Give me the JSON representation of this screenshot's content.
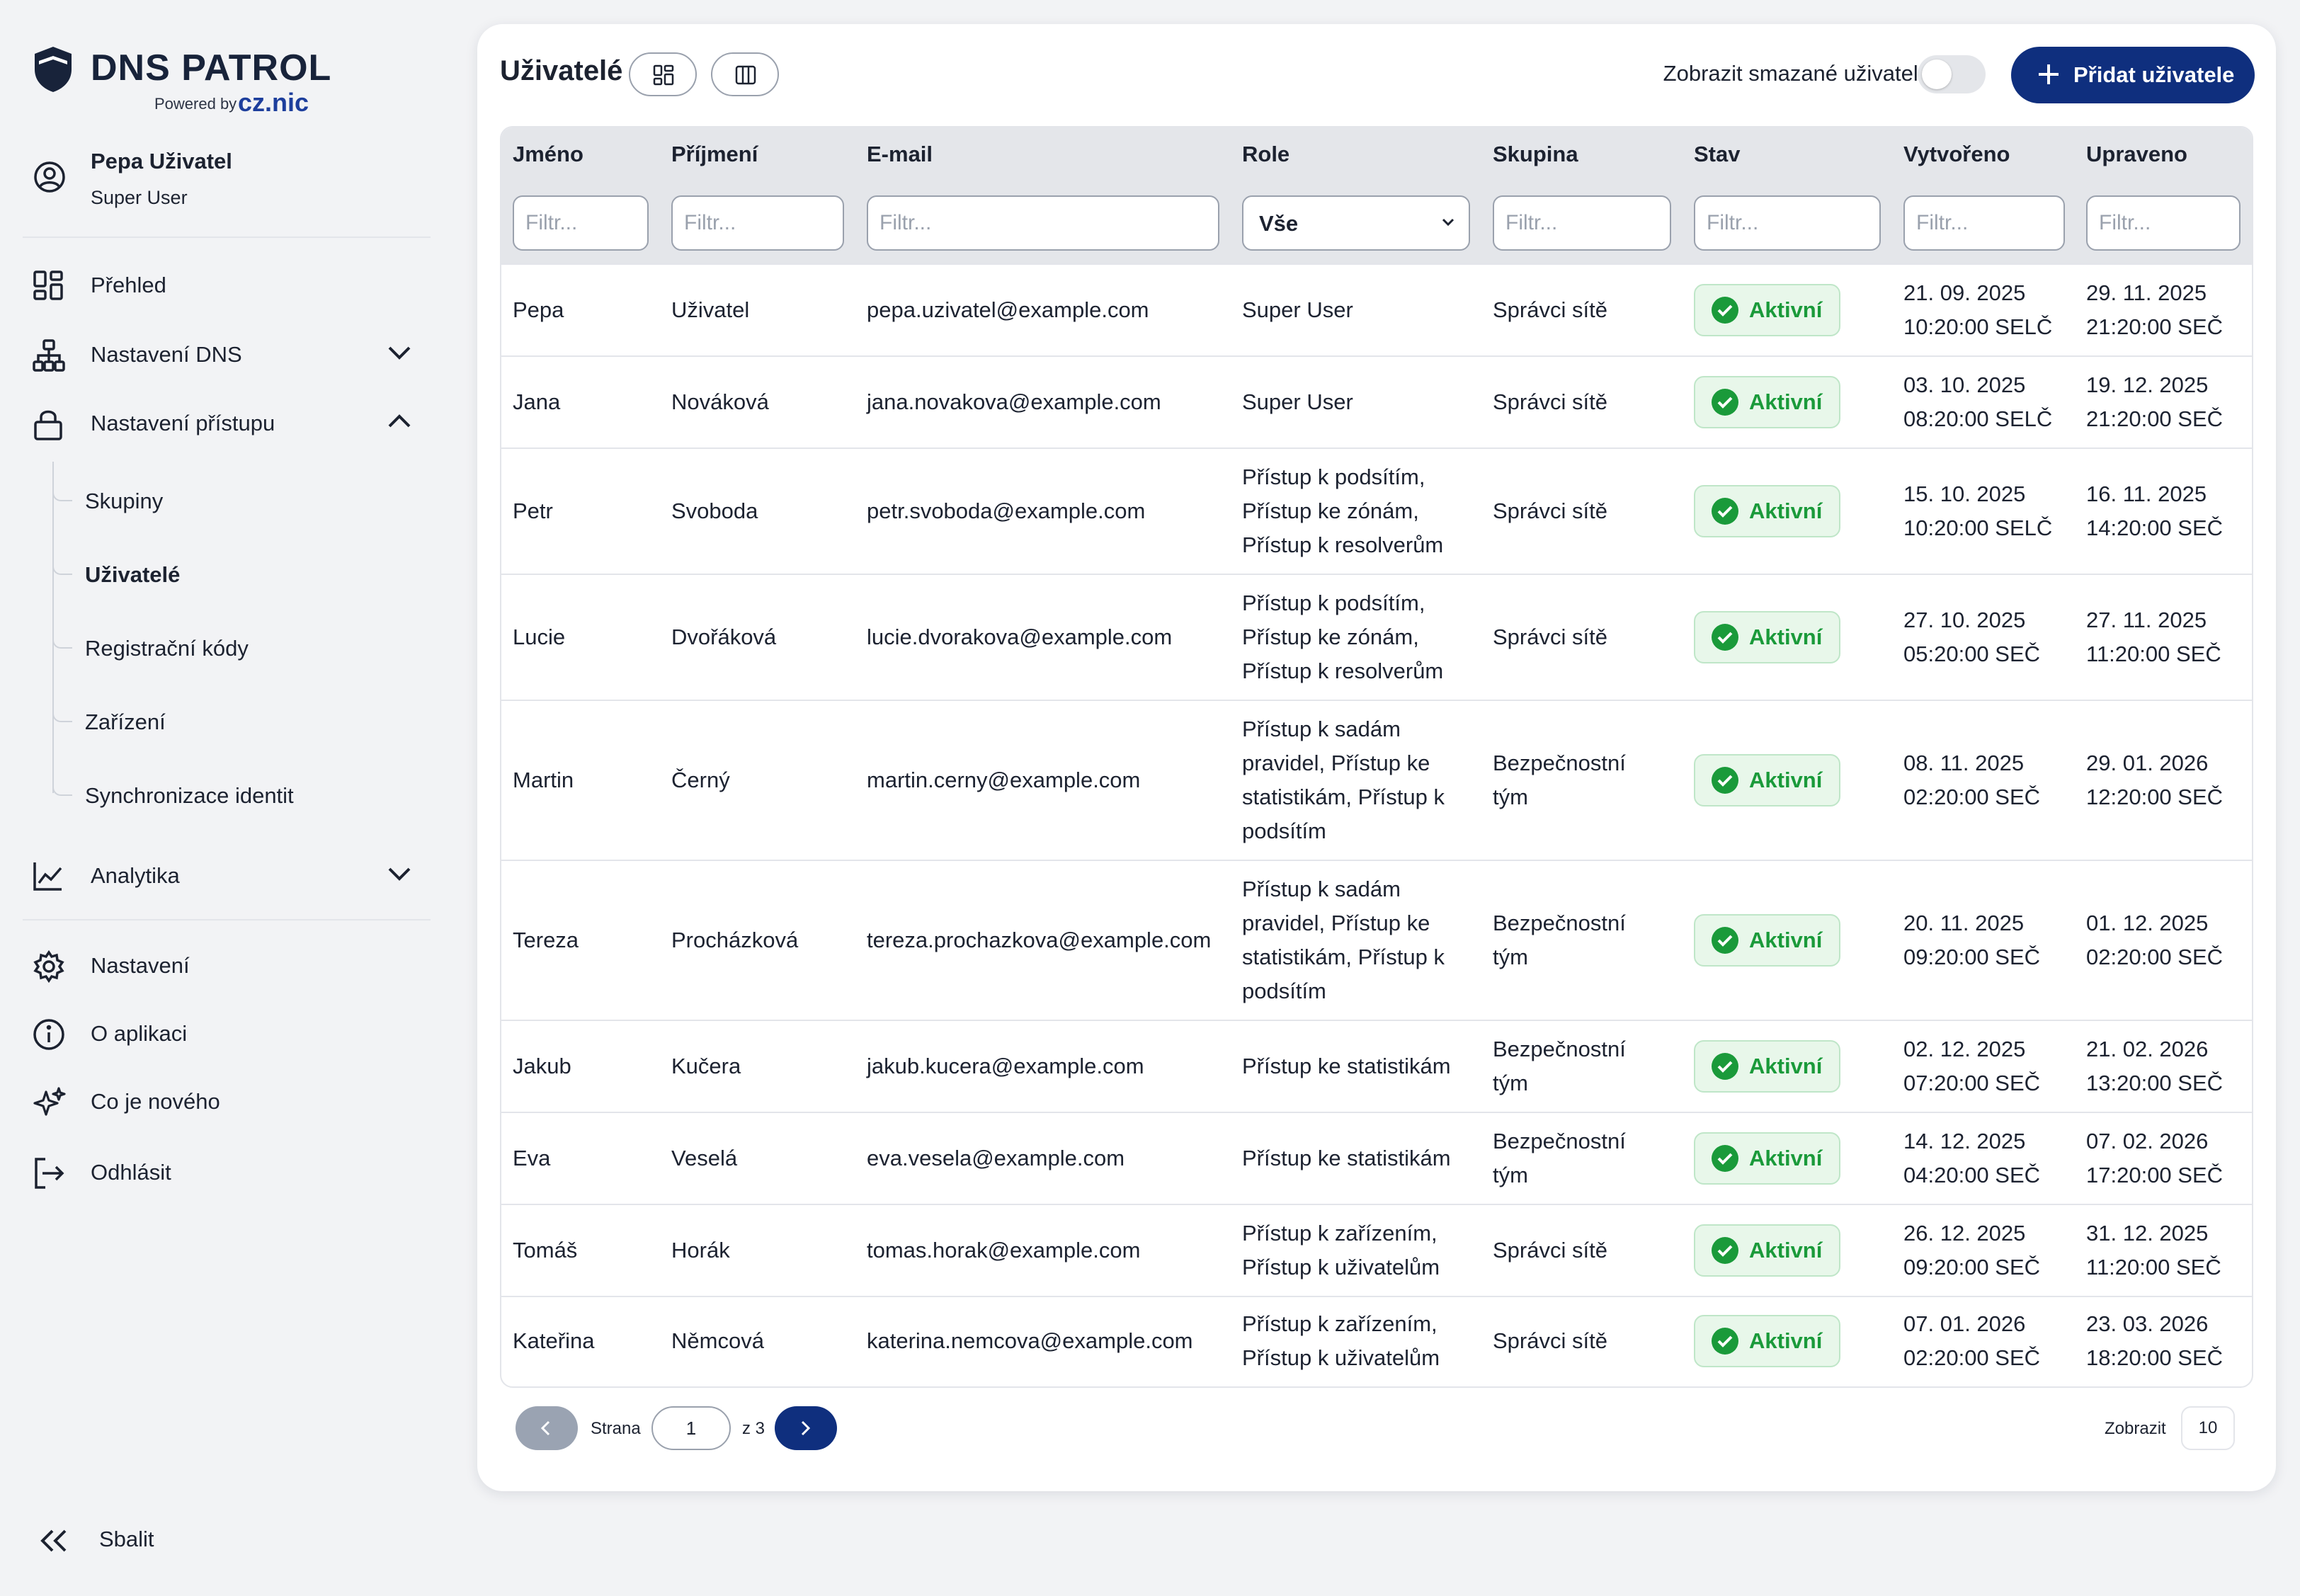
{
  "app": {
    "logo_text": "DNS PATROL",
    "powered_by": "Powered by",
    "brand": "cz.nic"
  },
  "user": {
    "name": "Pepa Uživatel",
    "role": "Super User"
  },
  "nav": {
    "overview": "Přehled",
    "dns_settings": "Nastavení DNS",
    "access_settings": "Nastavení přístupu",
    "sub_items": [
      "Skupiny",
      "Uživatelé",
      "Registrační kódy",
      "Zařízení",
      "Synchronizace identit"
    ],
    "analytics": "Analytika",
    "settings": "Nastavení",
    "about": "O aplikaci",
    "whats_new": "Co je nového",
    "logout": "Odhlásit",
    "collapse": "Sbalit"
  },
  "toolbar": {
    "title": "Uživatelé",
    "show_deleted_label": "Zobrazit smazané uživatele",
    "show_deleted": false,
    "add_user_label": "Přidat uživatele"
  },
  "table": {
    "columns": [
      "Jméno",
      "Příjmení",
      "E-mail",
      "Role",
      "Skupina",
      "Stav",
      "Vytvořeno",
      "Upraveno"
    ],
    "filter_placeholder": "Filtr...",
    "role_filter_value": "Vše",
    "rows": [
      {
        "first": "Pepa",
        "last": "Uživatel",
        "email": "pepa.uzivatel@example.com",
        "role": "Super User",
        "group": "Správci sítě",
        "status": "Aktivní",
        "created": "21. 09. 2025\n10:20:00 SELČ",
        "updated": "29. 11. 2025\n21:20:00 SEČ"
      },
      {
        "first": "Jana",
        "last": "Nováková",
        "email": "jana.novakova@example.com",
        "role": "Super User",
        "group": "Správci sítě",
        "status": "Aktivní",
        "created": "03. 10. 2025\n08:20:00 SELČ",
        "updated": "19. 12. 2025\n21:20:00 SEČ"
      },
      {
        "first": "Petr",
        "last": "Svoboda",
        "email": "petr.svoboda@example.com",
        "role": "Přístup k podsítím,\nPřístup ke zónám,\nPřístup k resolverům",
        "group": "Správci sítě",
        "status": "Aktivní",
        "created": "15. 10. 2025\n10:20:00 SELČ",
        "updated": "16. 11. 2025\n14:20:00 SEČ"
      },
      {
        "first": "Lucie",
        "last": "Dvořáková",
        "email": "lucie.dvorakova@example.com",
        "role": "Přístup k podsítím,\nPřístup ke zónám,\nPřístup k resolverům",
        "group": "Správci sítě",
        "status": "Aktivní",
        "created": "27. 10. 2025\n05:20:00 SEČ",
        "updated": "27. 11. 2025\n11:20:00 SEČ"
      },
      {
        "first": "Martin",
        "last": "Černý",
        "email": "martin.cerny@example.com",
        "role": "Přístup k sadám\npravidel, Přístup ke\nstatistikám, Přístup k\npodsítím",
        "group": "Bezpečnostní\ntým",
        "status": "Aktivní",
        "created": "08. 11. 2025\n02:20:00 SEČ",
        "updated": "29. 01. 2026\n12:20:00 SEČ"
      },
      {
        "first": "Tereza",
        "last": "Procházková",
        "email": "tereza.prochazkova@example.com",
        "role": "Přístup k sadám\npravidel, Přístup ke\nstatistikám, Přístup k\npodsítím",
        "group": "Bezpečnostní\ntým",
        "status": "Aktivní",
        "created": "20. 11. 2025\n09:20:00 SEČ",
        "updated": "01. 12. 2025\n02:20:00 SEČ"
      },
      {
        "first": "Jakub",
        "last": "Kučera",
        "email": "jakub.kucera@example.com",
        "role": "Přístup ke statistikám",
        "group": "Bezpečnostní\ntým",
        "status": "Aktivní",
        "created": "02. 12. 2025\n07:20:00 SEČ",
        "updated": "21. 02. 2026\n13:20:00 SEČ"
      },
      {
        "first": "Eva",
        "last": "Veselá",
        "email": "eva.vesela@example.com",
        "role": "Přístup ke statistikám",
        "group": "Bezpečnostní\ntým",
        "status": "Aktivní",
        "created": "14. 12. 2025\n04:20:00 SEČ",
        "updated": "07. 02. 2026\n17:20:00 SEČ"
      },
      {
        "first": "Tomáš",
        "last": "Horák",
        "email": "tomas.horak@example.com",
        "role": "Přístup k zařízením,\nPřístup k uživatelům",
        "group": "Správci sítě",
        "status": "Aktivní",
        "created": "26. 12. 2025\n09:20:00 SEČ",
        "updated": "31. 12. 2025\n11:20:00 SEČ"
      },
      {
        "first": "Kateřina",
        "last": "Němcová",
        "email": "katerina.nemcova@example.com",
        "role": "Přístup k zařízením,\nPřístup k uživatelům",
        "group": "Správci sítě",
        "status": "Aktivní",
        "created": "07. 01. 2026\n02:20:00 SEČ",
        "updated": "23. 03. 2026\n18:20:00 SEČ"
      }
    ]
  },
  "pagination": {
    "page_label": "Strana",
    "current_page": "1",
    "of_label": "z 3",
    "page_size_label": "Zobrazit",
    "page_size": "10"
  },
  "colors": {
    "primary": "#0f2f7e",
    "success": "#1a9a3a",
    "badge_bg": "#e8f7ea"
  }
}
